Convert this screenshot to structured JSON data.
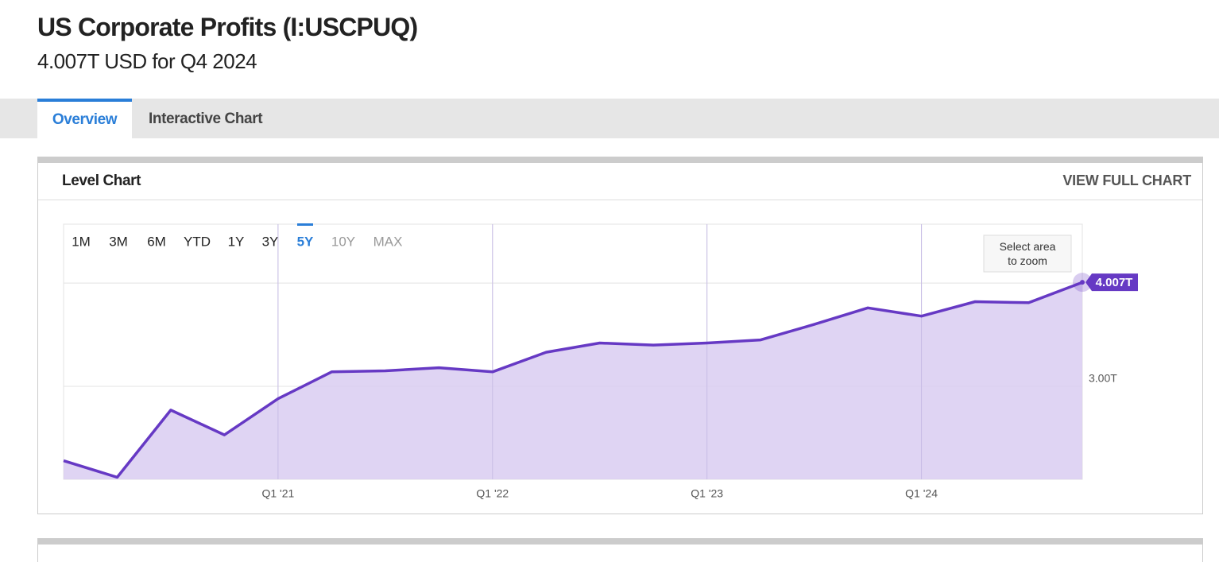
{
  "header": {
    "title": "US Corporate Profits (I:USCPUQ)",
    "subtitle": "4.007T USD for Q4 2024"
  },
  "tabs": [
    "Overview",
    "Interactive Chart"
  ],
  "panel": {
    "title": "Level Chart",
    "link": "VIEW FULL CHART"
  },
  "ranges": [
    "1M",
    "3M",
    "6M",
    "YTD",
    "1Y",
    "3Y",
    "5Y",
    "10Y",
    "MAX"
  ],
  "zoom_hint": "Select area to zoom",
  "chart_data": {
    "type": "area",
    "categories": [
      null,
      null,
      null,
      null,
      "Q1 '21",
      null,
      null,
      null,
      "Q1 '22",
      null,
      null,
      null,
      "Q1 '23",
      null,
      null,
      null,
      "Q1 '24",
      null,
      null,
      null
    ],
    "values": [
      2.28,
      2.12,
      2.77,
      2.53,
      2.88,
      3.14,
      3.15,
      3.18,
      3.14,
      3.33,
      3.42,
      3.4,
      3.42,
      3.45,
      3.6,
      3.76,
      3.68,
      3.82,
      3.81,
      4.007
    ],
    "value_labels": [
      null,
      null,
      null,
      null,
      null,
      null,
      null,
      null,
      null,
      null,
      null,
      null,
      null,
      null,
      null,
      null,
      null,
      null,
      null,
      "4.007T"
    ],
    "color": "#6639c4",
    "fill": "#d9cdf1",
    "ylim": [
      2.1,
      4.57
    ],
    "yticks": [
      {
        "value": 3,
        "label": "3.00T"
      },
      {
        "value": 4,
        "label": null
      }
    ],
    "grid": true
  }
}
